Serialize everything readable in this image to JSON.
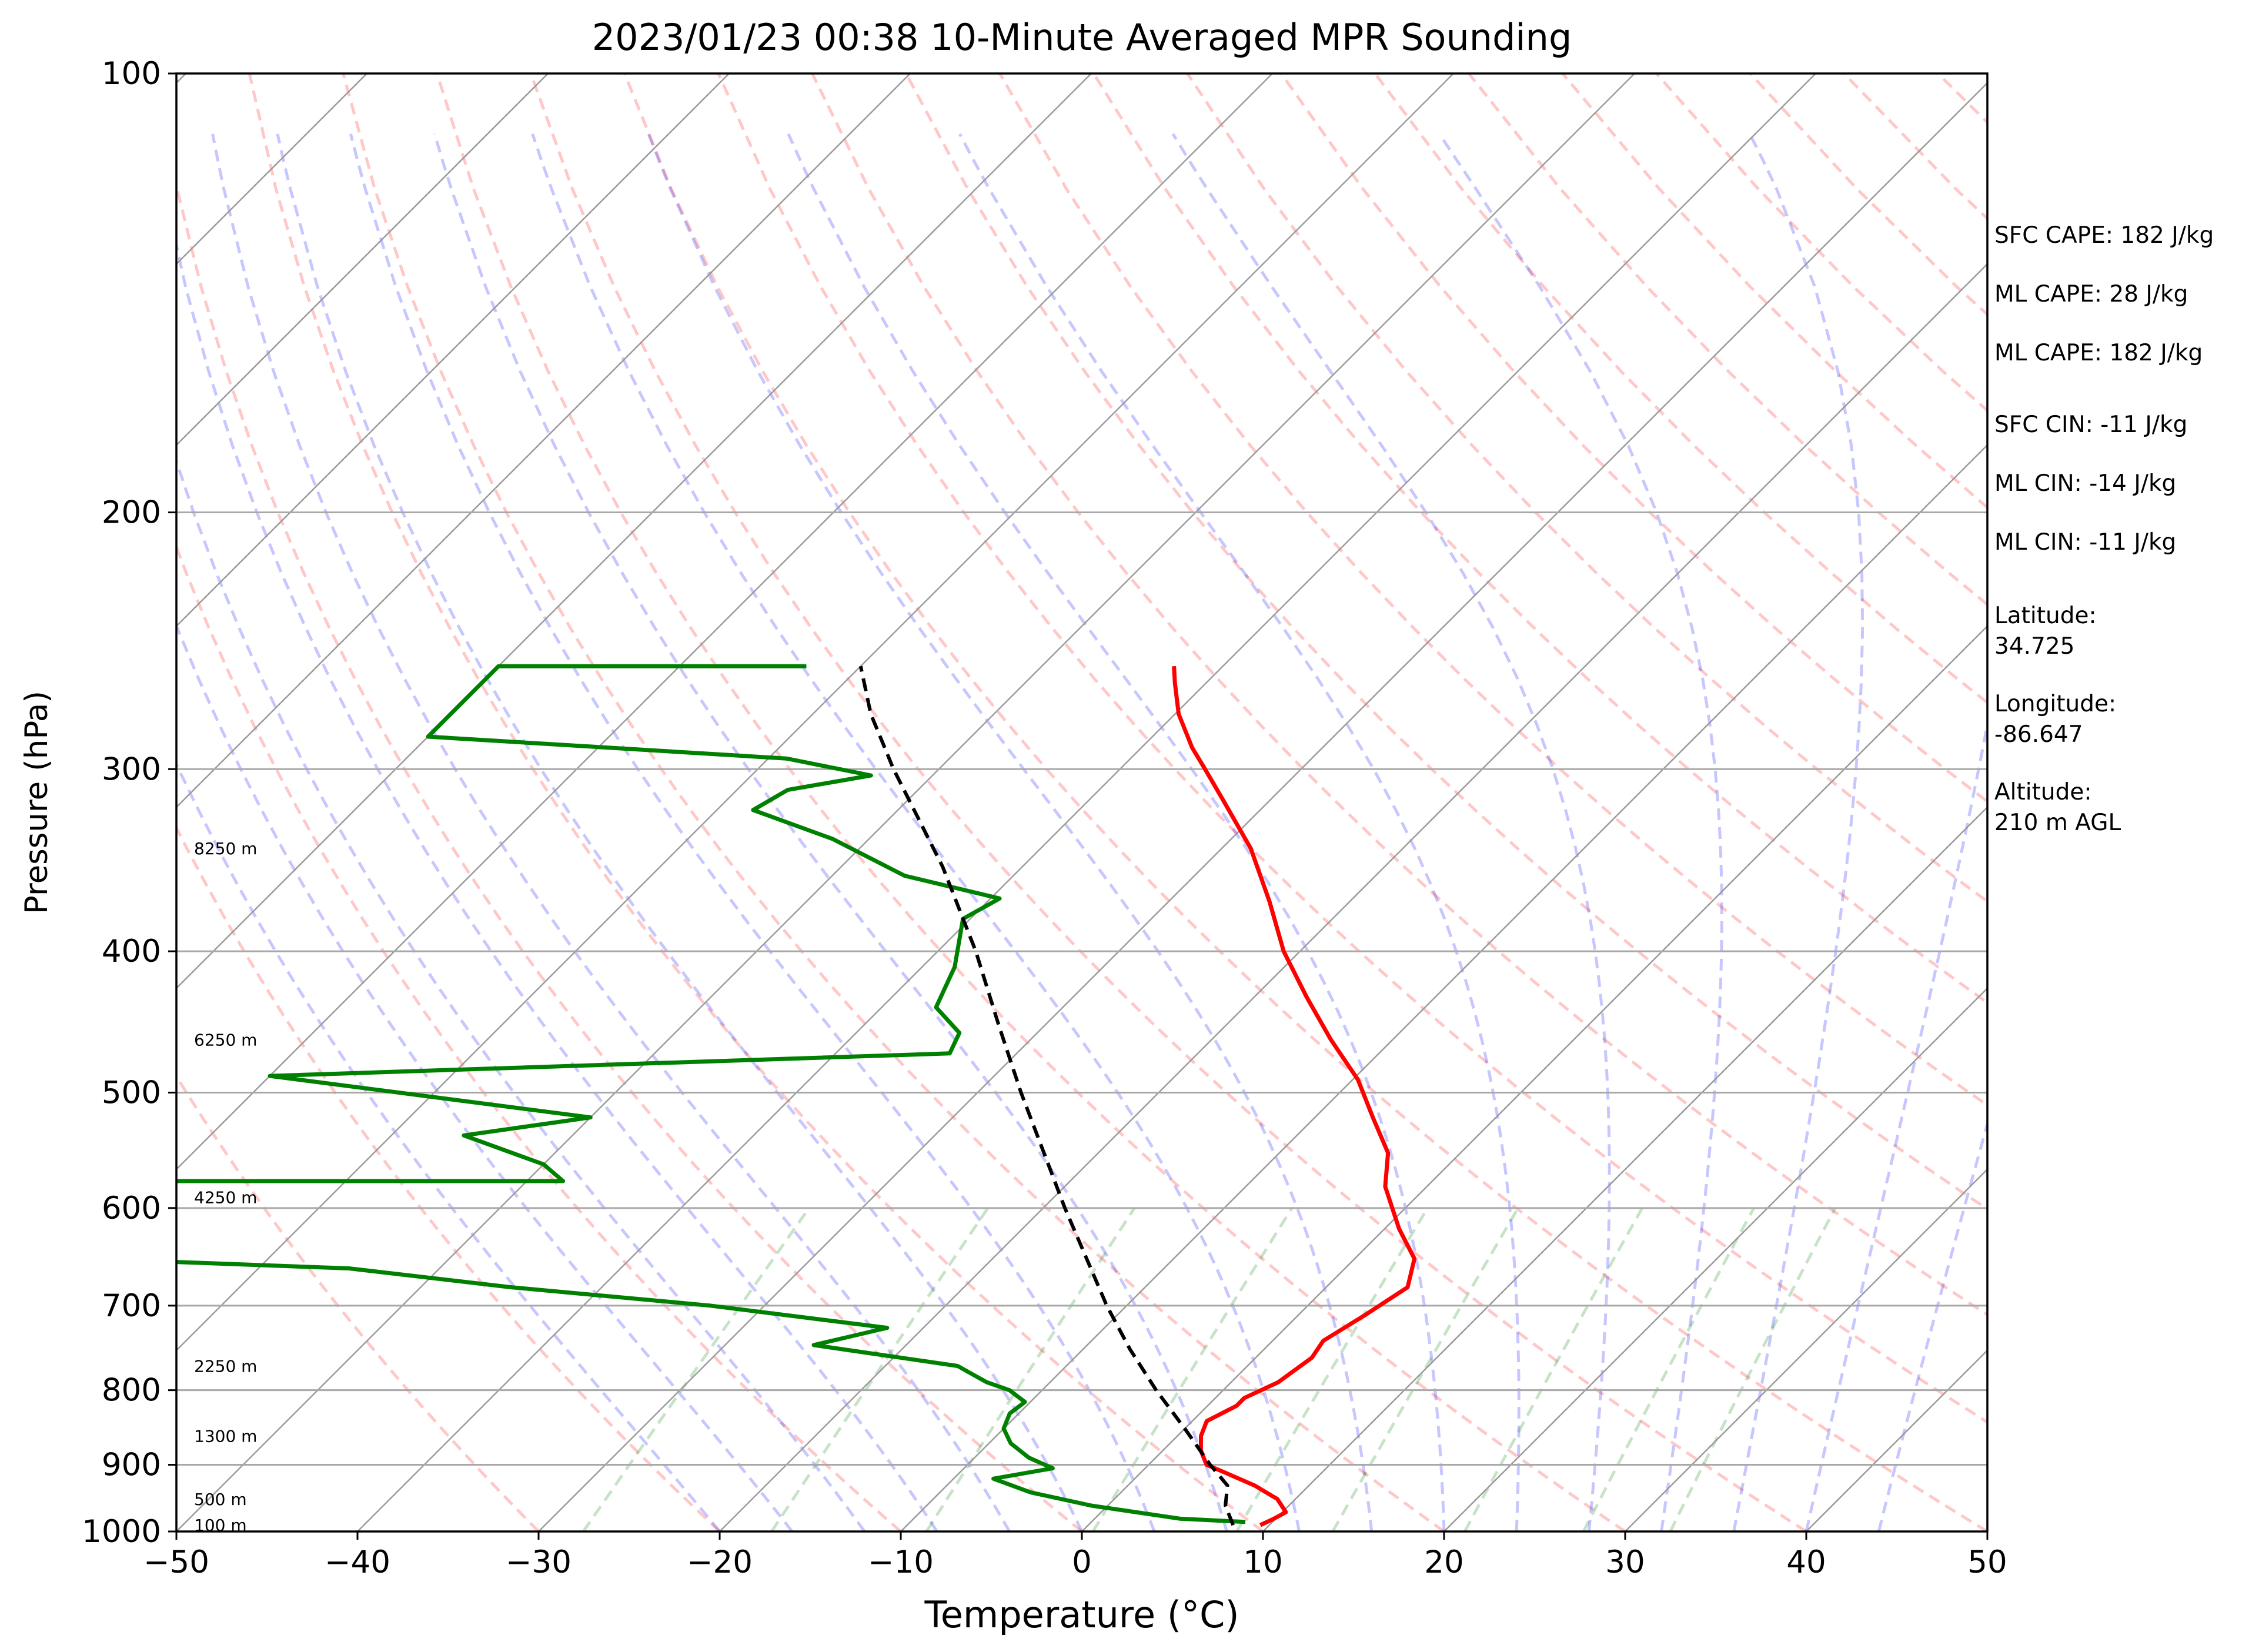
{
  "chart_data": {
    "type": "line",
    "title": "2023/01/23 00:38 10-Minute Averaged MPR Sounding",
    "xlabel": "Temperature (°C)",
    "ylabel": "Pressure (hPa)",
    "xlim": [
      -50,
      50
    ],
    "ylim": [
      1000,
      100
    ],
    "y_scale": "log",
    "skew": "skew-T log-P",
    "grid": true,
    "x_ticks": [
      -50,
      -40,
      -30,
      -20,
      -10,
      0,
      10,
      20,
      30,
      40,
      50
    ],
    "x_tick_labels": [
      "−50",
      "−40",
      "−30",
      "−20",
      "−10",
      "0",
      "10",
      "20",
      "30",
      "40",
      "50"
    ],
    "y_ticks": [
      1000,
      900,
      800,
      700,
      600,
      500,
      400,
      300,
      200,
      100
    ],
    "y_tick_labels": [
      "1000",
      "900",
      "800",
      "700",
      "600",
      "500",
      "400",
      "300",
      "200",
      "100"
    ],
    "height_labels": [
      {
        "p": 990,
        "text": "100 m"
      },
      {
        "p": 950,
        "text": "500 m"
      },
      {
        "p": 860,
        "text": "1300 m"
      },
      {
        "p": 770,
        "text": "2250 m"
      },
      {
        "p": 590,
        "text": "4250 m"
      },
      {
        "p": 460,
        "text": "6250 m"
      },
      {
        "p": 340,
        "text": "8250 m"
      }
    ],
    "series": [
      {
        "role": "temperature",
        "color": "#ff0000",
        "points": [
          {
            "p": 990,
            "t": 9.5
          },
          {
            "p": 980,
            "t": 9.9
          },
          {
            "p": 970,
            "t": 10.2
          },
          {
            "p": 950,
            "t": 9.0
          },
          {
            "p": 930,
            "t": 7.0
          },
          {
            "p": 910,
            "t": 4.5
          },
          {
            "p": 900,
            "t": 3.2
          },
          {
            "p": 880,
            "t": 2.1
          },
          {
            "p": 860,
            "t": 1.3
          },
          {
            "p": 840,
            "t": 0.8
          },
          {
            "p": 820,
            "t": 1.6
          },
          {
            "p": 810,
            "t": 1.6
          },
          {
            "p": 790,
            "t": 2.6
          },
          {
            "p": 760,
            "t": 3.1
          },
          {
            "p": 740,
            "t": 2.8
          },
          {
            "p": 710,
            "t": 3.7
          },
          {
            "p": 680,
            "t": 4.5
          },
          {
            "p": 650,
            "t": 3.3
          },
          {
            "p": 620,
            "t": 0.8
          },
          {
            "p": 580,
            "t": -2.3
          },
          {
            "p": 550,
            "t": -4.0
          },
          {
            "p": 520,
            "t": -6.8
          },
          {
            "p": 490,
            "t": -9.7
          },
          {
            "p": 460,
            "t": -13.4
          },
          {
            "p": 430,
            "t": -17.1
          },
          {
            "p": 400,
            "t": -20.9
          },
          {
            "p": 370,
            "t": -24.4
          },
          {
            "p": 340,
            "t": -28.4
          },
          {
            "p": 315,
            "t": -32.6
          },
          {
            "p": 300,
            "t": -35.3
          },
          {
            "p": 290,
            "t": -37.2
          },
          {
            "p": 275,
            "t": -39.8
          },
          {
            "p": 262,
            "t": -41.7
          },
          {
            "p": 255,
            "t": -42.7
          }
        ]
      },
      {
        "role": "dewpoint",
        "color": "#008000",
        "points": [
          {
            "p": 985,
            "t": 8.5
          },
          {
            "p": 980,
            "t": 4.7
          },
          {
            "p": 960,
            "t": -0.9
          },
          {
            "p": 940,
            "t": -5.0
          },
          {
            "p": 920,
            "t": -7.8
          },
          {
            "p": 905,
            "t": -5.1
          },
          {
            "p": 890,
            "t": -7.0
          },
          {
            "p": 870,
            "t": -8.8
          },
          {
            "p": 850,
            "t": -10.0
          },
          {
            "p": 830,
            "t": -10.5
          },
          {
            "p": 815,
            "t": -10.3
          },
          {
            "p": 800,
            "t": -11.8
          },
          {
            "p": 790,
            "t": -13.5
          },
          {
            "p": 770,
            "t": -16.0
          },
          {
            "p": 745,
            "t": -25.1
          },
          {
            "p": 725,
            "t": -22.0
          },
          {
            "p": 700,
            "t": -33.0
          },
          {
            "p": 680,
            "t": -45.0
          },
          {
            "p": 660,
            "t": -55.0
          },
          {
            "p": 650,
            "t": -70.0
          },
          {
            "p": 575,
            "t": -70.0
          },
          {
            "p": 575,
            "t": -48.0
          },
          {
            "p": 560,
            "t": -50.0
          },
          {
            "p": 535,
            "t": -56.0
          },
          {
            "p": 520,
            "t": -50.0
          },
          {
            "p": 487,
            "t": -70.0
          },
          {
            "p": 470,
            "t": -33.7
          },
          {
            "p": 455,
            "t": -34.3
          },
          {
            "p": 437,
            "t": -37.0
          },
          {
            "p": 410,
            "t": -38.2
          },
          {
            "p": 380,
            "t": -40.4
          },
          {
            "p": 368,
            "t": -39.5
          },
          {
            "p": 355,
            "t": -46.0
          },
          {
            "p": 335,
            "t": -52.0
          },
          {
            "p": 320,
            "t": -58.0
          },
          {
            "p": 310,
            "t": -57.2
          },
          {
            "p": 303,
            "t": -53.4
          },
          {
            "p": 295,
            "t": -59.0
          },
          {
            "p": 285,
            "t": -80.0
          },
          {
            "p": 255,
            "t": -80.0
          },
          {
            "p": 255,
            "t": -63.0
          }
        ]
      },
      {
        "role": "parcel-profile",
        "color": "#000000",
        "dashed": true,
        "points": [
          {
            "p": 990,
            "t": 8.0
          },
          {
            "p": 960,
            "t": 6.5
          },
          {
            "p": 930,
            "t": 5.5
          },
          {
            "p": 900,
            "t": 3.4
          },
          {
            "p": 850,
            "t": 0.0
          },
          {
            "p": 800,
            "t": -3.7
          },
          {
            "p": 750,
            "t": -7.4
          },
          {
            "p": 700,
            "t": -11.1
          },
          {
            "p": 650,
            "t": -14.8
          },
          {
            "p": 600,
            "t": -18.8
          },
          {
            "p": 550,
            "t": -23.0
          },
          {
            "p": 500,
            "t": -27.6
          },
          {
            "p": 450,
            "t": -32.5
          },
          {
            "p": 400,
            "t": -37.9
          },
          {
            "p": 350,
            "t": -44.4
          },
          {
            "p": 300,
            "t": -52.5
          },
          {
            "p": 275,
            "t": -56.8
          },
          {
            "p": 255,
            "t": -60.0
          }
        ]
      }
    ]
  },
  "stats": {
    "sfc_cape": "SFC CAPE: 182 J/kg",
    "ml_cape_1": "ML CAPE: 28 J/kg",
    "ml_cape_2": "ML CAPE: 182 J/kg",
    "sfc_cin": "SFC CIN: -11 J/kg",
    "ml_cin_1": "ML CIN: -14 J/kg",
    "ml_cin_2": "ML CIN: -11 J/kg",
    "latitude": "Latitude:\n34.725",
    "longitude": "Longitude:\n-86.647",
    "altitude": "Altitude:\n210 m AGL"
  }
}
